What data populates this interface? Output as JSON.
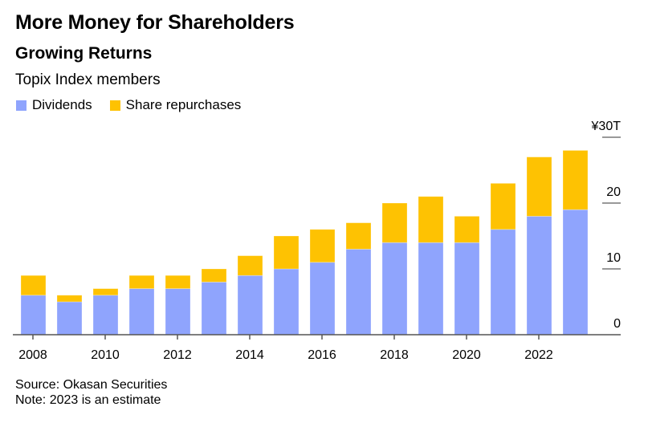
{
  "header": {
    "title": "More Money for Shareholders",
    "subtitle": "Growing Returns",
    "description": "Topix Index members"
  },
  "footer": {
    "source": "Source: Okasan Securities",
    "note": "Note: 2023 is an estimate"
  },
  "chart_data": {
    "type": "bar",
    "stacked": true,
    "title": "Growing Returns",
    "subtitle": "Topix Index members",
    "xlabel": "",
    "ylabel": "",
    "categories": [
      "2008",
      "2009",
      "2010",
      "2011",
      "2012",
      "2013",
      "2014",
      "2015",
      "2016",
      "2017",
      "2018",
      "2019",
      "2020",
      "2021",
      "2022",
      "2023"
    ],
    "x_tick_labels": [
      "2008",
      "2010",
      "2012",
      "2014",
      "2016",
      "2018",
      "2020",
      "2022"
    ],
    "y_ticks": [
      0,
      10,
      20,
      30
    ],
    "y_tick_labels": [
      "0",
      "10",
      "20",
      "¥30T"
    ],
    "ylim": [
      0,
      30
    ],
    "y_axis_side": "right",
    "grid": false,
    "legend_position": "top-left",
    "series": [
      {
        "name": "Dividends",
        "color": "#8fa4fd",
        "values": [
          6,
          5,
          6,
          7,
          7,
          8,
          9,
          10,
          11,
          13,
          14,
          14,
          14,
          16,
          18,
          19
        ]
      },
      {
        "name": "Share repurchases",
        "color": "#fec202",
        "values": [
          3,
          1,
          1,
          2,
          2,
          2,
          3,
          5,
          5,
          4,
          6,
          7,
          4,
          7,
          9,
          9
        ]
      }
    ]
  }
}
